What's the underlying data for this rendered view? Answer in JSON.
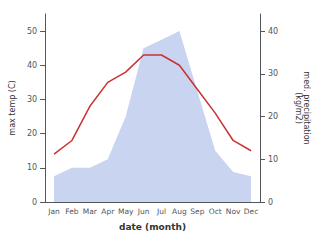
{
  "chart_data": {
    "type": "line",
    "categories": [
      "Jan",
      "Feb",
      "Mar",
      "Apr",
      "May",
      "Jun",
      "Jul",
      "Aug",
      "Sep",
      "Oct",
      "Nov",
      "Dec"
    ],
    "series": [
      {
        "type": "area",
        "axis": "y2",
        "color": "#c8d4f0",
        "values": [
          6,
          8,
          8,
          10,
          20,
          36,
          38,
          40,
          26,
          12,
          7,
          6
        ]
      },
      {
        "type": "line",
        "color": "#c83232",
        "values": [
          14,
          18,
          28,
          35,
          38,
          43,
          43,
          40,
          33,
          26,
          18,
          15
        ]
      }
    ],
    "xlabel": "date (month)",
    "ylabel": "max temp (C)",
    "y2label": "med. precipitation\n(kg/m2)",
    "ylim": [
      0,
      55
    ],
    "yticks": [
      0,
      10,
      20,
      30,
      40,
      50
    ],
    "y2lim": [
      0,
      44
    ],
    "y2ticks": [
      0,
      10,
      20,
      30,
      40
    ],
    "grid": false
  }
}
